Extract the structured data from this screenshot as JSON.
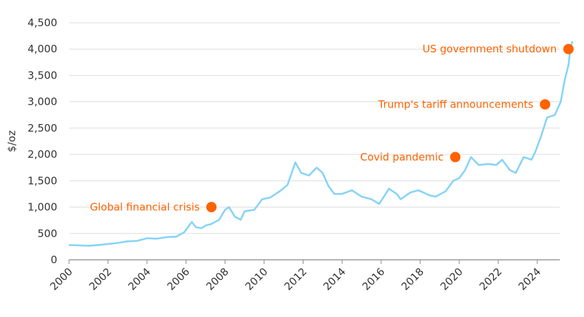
{
  "chart_data": {
    "type": "line",
    "title": "",
    "xlabel": "",
    "ylabel": "$/oz",
    "xlim": [
      2000,
      2025.8
    ],
    "ylim": [
      0,
      4500
    ],
    "grid": "horizontal",
    "x_ticks": [
      "2000",
      "2002",
      "2004",
      "2006",
      "2008",
      "2010",
      "2012",
      "2014",
      "2016",
      "2018",
      "2020",
      "2022",
      "2024"
    ],
    "y_ticks": [
      "0",
      "500",
      "1,000",
      "1,500",
      "2,000",
      "2,500",
      "3,000",
      "3,500",
      "4,000",
      "4,500"
    ],
    "colors": {
      "line": "#86d3f7",
      "annotation": "#ff6200",
      "grid": "#dddddd"
    },
    "series": [
      {
        "x": [
          2000,
          2000.5,
          2001,
          2001.5,
          2002,
          2002.5,
          2003,
          2003.5,
          2004,
          2004.5,
          2005,
          2005.5,
          2005.9,
          2006.3,
          2006.5,
          2006.8,
          2007,
          2007.3,
          2007.7,
          2008,
          2008.2,
          2008.5,
          2008.8,
          2009,
          2009.5,
          2009.9,
          2010.3,
          2010.8,
          2011.2,
          2011.6,
          2011.9,
          2012.3,
          2012.7,
          2013,
          2013.3,
          2013.6,
          2014,
          2014.5,
          2015,
          2015.5,
          2015.9,
          2016.4,
          2016.8,
          2017,
          2017.5,
          2017.9,
          2018.5,
          2018.8,
          2019.3,
          2019.7,
          2020,
          2020.3,
          2020.6,
          2021,
          2021.5,
          2021.9,
          2022.2,
          2022.6,
          2022.9,
          2023.3,
          2023.7,
          2023.9,
          2024.2,
          2024.5,
          2024.9,
          2025.2,
          2025.4,
          2025.6,
          2025.7,
          2025.8
        ],
        "y": [
          280,
          275,
          265,
          280,
          300,
          320,
          350,
          360,
          410,
          400,
          430,
          440,
          520,
          720,
          620,
          600,
          650,
          680,
          760,
          950,
          1000,
          820,
          760,
          920,
          950,
          1150,
          1180,
          1300,
          1420,
          1850,
          1650,
          1600,
          1750,
          1650,
          1400,
          1250,
          1250,
          1320,
          1200,
          1150,
          1060,
          1350,
          1250,
          1150,
          1280,
          1320,
          1220,
          1200,
          1300,
          1500,
          1550,
          1700,
          1950,
          1800,
          1820,
          1800,
          1900,
          1700,
          1650,
          1950,
          1900,
          2050,
          2350,
          2700,
          2750,
          3000,
          3400,
          3700,
          4000,
          4150
        ]
      }
    ],
    "annotations": [
      {
        "label": "Global financial crisis",
        "x": 2007.3,
        "y": 1000
      },
      {
        "label": "Covid pandemic",
        "x": 2019.8,
        "y": 1950
      },
      {
        "label": "Trump's tariff announcements",
        "x": 2024.4,
        "y": 2950
      },
      {
        "label": "US government shutdown",
        "x": 2025.6,
        "y": 4000
      }
    ]
  }
}
